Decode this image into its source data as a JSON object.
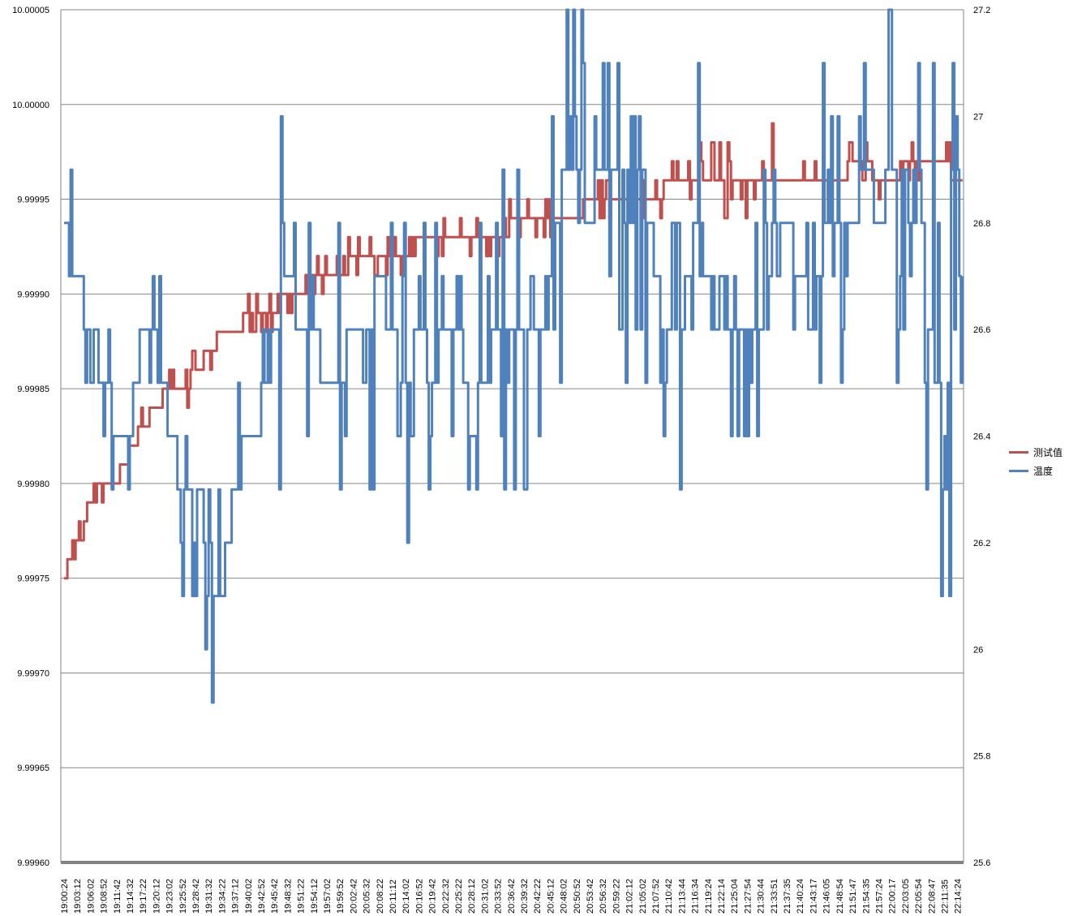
{
  "chart_data": {
    "type": "line",
    "title": "",
    "xlabel": "",
    "ylabel": "",
    "y_left_lim": [
      9.9996,
      10.00005
    ],
    "y_left_ticks": [
      "10.00005",
      "10.00000",
      "9.99995",
      "9.99990",
      "9.99985",
      "9.99980",
      "9.99975",
      "9.99970",
      "9.99965",
      "9.99960"
    ],
    "y_right_lim": [
      25.6,
      27.2
    ],
    "y_right_ticks": [
      "27.2",
      "27",
      "26.8",
      "26.6",
      "26.4",
      "26.2",
      "26",
      "25.8",
      "25.6"
    ],
    "x_tick_labels": [
      "19:00:24",
      "19:03:12",
      "19:06:02",
      "19:08:52",
      "19:11:42",
      "19:14:32",
      "19:17:22",
      "19:20:12",
      "19:23:02",
      "19:25:52",
      "19:28:42",
      "19:31:32",
      "19:34:22",
      "19:37:12",
      "19:40:02",
      "19:42:52",
      "19:45:42",
      "19:48:32",
      "19:51:22",
      "19:54:12",
      "19:57:02",
      "19:59:52",
      "20:02:42",
      "20:05:32",
      "20:08:22",
      "20:11:12",
      "20:14:02",
      "20:16:52",
      "20:19:42",
      "20:22:32",
      "20:25:22",
      "20:28:12",
      "20:31:02",
      "20:33:52",
      "20:36:42",
      "20:39:32",
      "20:42:22",
      "20:45:12",
      "20:48:02",
      "20:50:52",
      "20:53:42",
      "20:56:32",
      "20:59:22",
      "21:02:12",
      "21:05:02",
      "21:07:52",
      "21:10:42",
      "21:13:44",
      "21:16:34",
      "21:19:24",
      "21:22:14",
      "21:25:04",
      "21:27:54",
      "21:30:44",
      "21:33:51",
      "21:37:35",
      "21:40:24",
      "21:43:17",
      "21:46:05",
      "21:48:54",
      "21:51:47",
      "21:54:35",
      "21:57:24",
      "22:00:17",
      "22:03:05",
      "22:05:54",
      "22:08:47",
      "22:11:35",
      "22:14:24"
    ],
    "legend_position": "right",
    "grid": "horizontal",
    "series": [
      {
        "name": "测试值",
        "axis": "left",
        "color": "#c0504d",
        "values_by_tick": [
          9.99975,
          9.99977,
          9.99979,
          9.9998,
          9.9998,
          9.99982,
          9.99983,
          9.99984,
          9.99985,
          9.99985,
          9.99986,
          9.99987,
          9.99988,
          9.99988,
          9.99989,
          9.99989,
          9.99989,
          9.9999,
          9.9999,
          9.99991,
          9.99991,
          9.99991,
          9.99992,
          9.99992,
          9.99992,
          9.99992,
          9.99992,
          9.99993,
          9.99993,
          9.99993,
          9.99993,
          9.99993,
          9.99993,
          9.99993,
          9.99994,
          9.99994,
          9.99994,
          9.99994,
          9.99994,
          9.99994,
          9.99995,
          9.99995,
          9.99995,
          9.99995,
          9.99995,
          9.99995,
          9.99996,
          9.99996,
          9.99996,
          9.99996,
          9.99996,
          9.99996,
          9.99996,
          9.99996,
          9.99996,
          9.99996,
          9.99996,
          9.99996,
          9.99996,
          9.99996,
          9.99997,
          9.99997,
          9.99996,
          9.99996,
          9.99997,
          9.99997,
          9.99997,
          9.99997,
          9.99996
        ],
        "noise": [
          [
            0,
            1e-05
          ],
          [
            4,
            1e-05
          ],
          [
            10,
            1e-05
          ],
          [
            18,
            1e-05
          ],
          [
            30,
            1e-05
          ],
          [
            36,
            1e-05
          ],
          [
            40,
            1e-05
          ],
          [
            48,
            3e-05
          ],
          [
            54,
            1e-05
          ],
          [
            60,
            1e-05
          ],
          [
            66,
            1e-05
          ]
        ]
      },
      {
        "name": "温度",
        "axis": "right",
        "color": "#4f81bd",
        "values_by_tick": [
          26.8,
          26.7,
          26.6,
          26.5,
          26.4,
          26.4,
          26.6,
          26.6,
          26.4,
          26.3,
          26.3,
          26.1,
          26.1,
          26.3,
          26.4,
          26.4,
          26.6,
          26.7,
          26.6,
          26.6,
          26.5,
          26.5,
          26.6,
          26.6,
          26.7,
          26.6,
          26.5,
          26.6,
          26.5,
          26.6,
          26.6,
          26.4,
          26.5,
          26.6,
          26.6,
          26.6,
          26.6,
          26.7,
          26.9,
          26.9,
          26.8,
          26.9,
          26.9,
          26.8,
          26.9,
          26.7,
          26.6,
          26.6,
          26.8,
          26.7,
          26.6,
          26.6,
          26.6,
          26.6,
          26.7,
          26.8,
          26.7,
          26.6,
          26.8,
          26.8,
          26.8,
          26.9,
          26.8,
          26.9,
          26.9,
          26.7,
          26.6,
          26.4,
          26.7
        ],
        "noise": [
          [
            0,
            0.1
          ],
          [
            8,
            0.2
          ],
          [
            12,
            0.2
          ],
          [
            16,
            0.3
          ],
          [
            22,
            0.3
          ],
          [
            30,
            0.3
          ],
          [
            36,
            0.4
          ],
          [
            40,
            0.3
          ],
          [
            48,
            0.3
          ],
          [
            56,
            0.3
          ],
          [
            62,
            0.4
          ],
          [
            66,
            0.5
          ]
        ]
      }
    ]
  }
}
